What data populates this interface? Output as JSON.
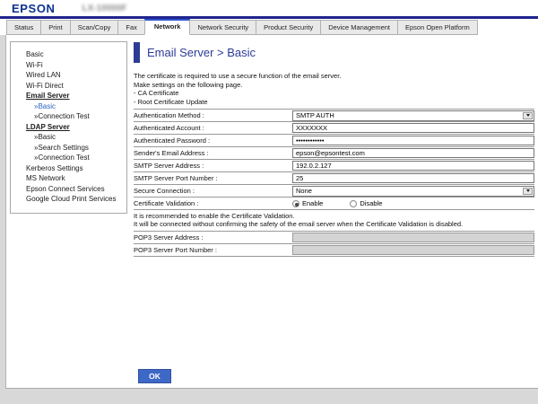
{
  "colors": {
    "epson_blue": "#0b3190",
    "header_line": "#20248e",
    "active_tab_accent": "#2f55cd",
    "title_blue": "#2c3c96",
    "button_blue": "#3e68c6",
    "page_background": "#d8d8d8"
  },
  "header": {
    "logo": "EPSON",
    "model_blurred": "LX-10000F"
  },
  "tabs": [
    {
      "label": "Status"
    },
    {
      "label": "Print"
    },
    {
      "label": "Scan/Copy"
    },
    {
      "label": "Fax"
    },
    {
      "label": "Network",
      "active": true
    },
    {
      "label": "Network Security"
    },
    {
      "label": "Product Security"
    },
    {
      "label": "Device Management"
    },
    {
      "label": "Epson Open Platform"
    }
  ],
  "sidebar": {
    "items": [
      {
        "label": "Basic",
        "type": "top"
      },
      {
        "label": "Wi-Fi",
        "type": "top"
      },
      {
        "label": "Wired LAN",
        "type": "top"
      },
      {
        "label": "Wi-Fi Direct",
        "type": "top"
      },
      {
        "label": "Email Server",
        "type": "section"
      },
      {
        "label": "»Basic",
        "type": "sub",
        "active": true
      },
      {
        "label": "»Connection Test",
        "type": "sub"
      },
      {
        "label": "LDAP Server",
        "type": "section"
      },
      {
        "label": "»Basic",
        "type": "sub"
      },
      {
        "label": "»Search Settings",
        "type": "sub"
      },
      {
        "label": "»Connection Test",
        "type": "sub"
      },
      {
        "label": "Kerberos Settings",
        "type": "top"
      },
      {
        "label": "MS Network",
        "type": "top"
      },
      {
        "label": "Epson Connect Services",
        "type": "top"
      },
      {
        "label": "Google Cloud Print Services",
        "type": "top"
      }
    ]
  },
  "main": {
    "title": "Email Server > Basic",
    "intro_lines": [
      "The certificate is required to use a secure function of the email server.",
      "Make settings on the following page.",
      "- CA Certificate",
      "- Root Certificate Update"
    ],
    "fields": [
      {
        "label": "Authentication Method :",
        "type": "select",
        "value": "SMTP AUTH"
      },
      {
        "label": "Authenticated Account :",
        "type": "text",
        "value": "XXXXXXX"
      },
      {
        "label": "Authenticated Password :",
        "type": "password",
        "value": "••••••••••••"
      },
      {
        "label": "Sender's Email Address :",
        "type": "text",
        "value": "epson@epsontest.com"
      },
      {
        "label": "SMTP Server Address :",
        "type": "text",
        "value": "192.0.2.127"
      },
      {
        "label": "SMTP Server Port Number :",
        "type": "text",
        "value": "25"
      },
      {
        "label": "Secure Connection :",
        "type": "select",
        "value": "None"
      },
      {
        "label": "Certificate Validation :",
        "type": "radio",
        "options": [
          {
            "label": "Enable",
            "checked": true
          },
          {
            "label": "Disable",
            "checked": false
          }
        ]
      },
      {
        "label": "POP3 Server Address :",
        "type": "text-disabled",
        "value": ""
      },
      {
        "label": "POP3 Server Port Number :",
        "type": "text-disabled",
        "value": ""
      }
    ],
    "note_lines": [
      "It is recommended to enable the Certificate Validation.",
      "It will be connected without confirming the safety of the email server when the Certificate Validation is disabled."
    ],
    "ok_label": "OK"
  }
}
